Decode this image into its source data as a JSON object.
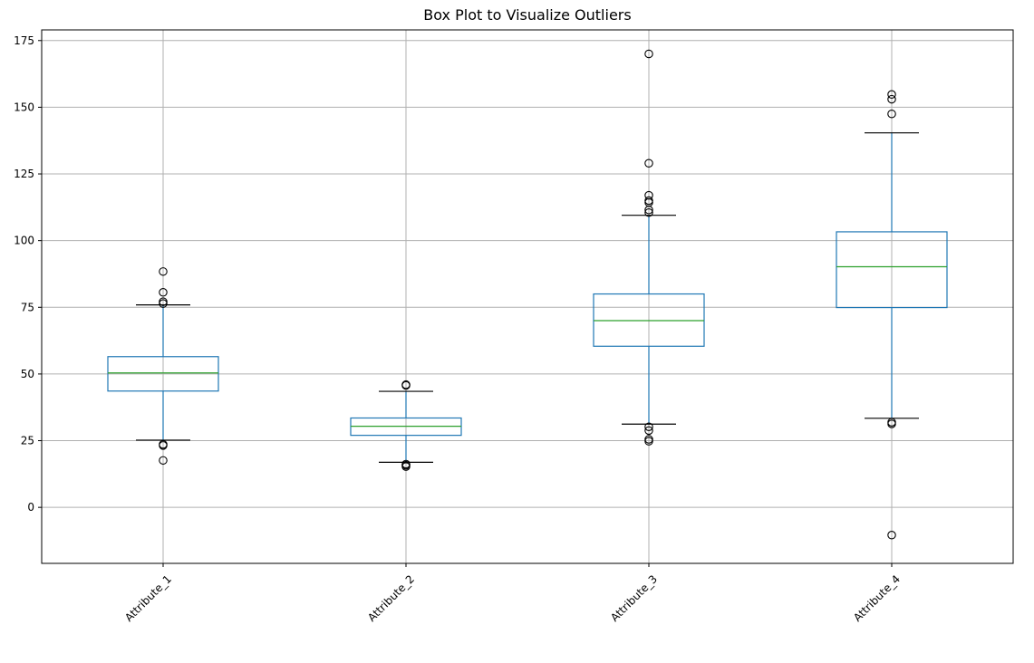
{
  "chart_data": {
    "type": "box",
    "title": "Box Plot to Visualize Outliers",
    "xlabel": "",
    "ylabel": "",
    "ylim": [
      -21,
      179
    ],
    "yticks": [
      0,
      25,
      50,
      75,
      100,
      125,
      150,
      175
    ],
    "grid": true,
    "categories": [
      "Attribute_1",
      "Attribute_2",
      "Attribute_3",
      "Attribute_4"
    ],
    "boxes": [
      {
        "label": "Attribute_1",
        "whisker_low": 25.2,
        "q1": 43.6,
        "median": 50.4,
        "q3": 56.5,
        "whisker_high": 75.9,
        "fliers": [
          23.2,
          23.6,
          17.6,
          76.4,
          77.1,
          80.6,
          88.4
        ]
      },
      {
        "label": "Attribute_2",
        "whisker_low": 16.9,
        "q1": 27.0,
        "median": 30.4,
        "q3": 33.5,
        "whisker_high": 43.5,
        "fliers": [
          15.3,
          15.8,
          16.2,
          45.7,
          46.0
        ]
      },
      {
        "label": "Attribute_3",
        "whisker_low": 31.2,
        "q1": 60.4,
        "median": 70.0,
        "q3": 80.0,
        "whisker_high": 109.5,
        "fliers": [
          24.8,
          25.5,
          28.8,
          30.2,
          110.5,
          111.5,
          114.3,
          115.0,
          117.0,
          129.0,
          170.0
        ]
      },
      {
        "label": "Attribute_4",
        "whisker_low": 33.4,
        "q1": 74.9,
        "median": 90.2,
        "q3": 103.3,
        "whisker_high": 140.4,
        "fliers": [
          -10.4,
          31.3,
          31.9,
          147.5,
          153.0,
          154.8
        ]
      }
    ],
    "colors": {
      "box": "#1f77b4",
      "median": "#2ca02c",
      "cap": "#000000",
      "flier": "#000000",
      "grid": "#b0b0b0"
    }
  }
}
